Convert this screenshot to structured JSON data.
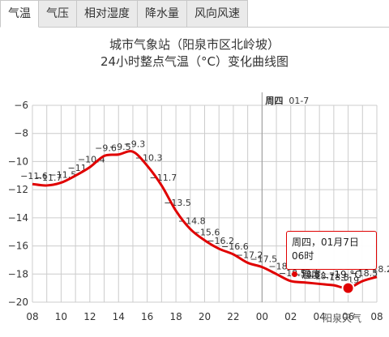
{
  "tabs": [
    {
      "label": "气温",
      "active": true
    },
    {
      "label": "气压",
      "active": false
    },
    {
      "label": "相对湿度",
      "active": false
    },
    {
      "label": "降水量",
      "active": false
    },
    {
      "label": "风向风速",
      "active": false
    }
  ],
  "day_marker": {
    "day": "周四",
    "date": "01-7"
  },
  "tooltip": {
    "title": "周四，01月7日06时",
    "series_label": "温度：",
    "value": "-19 °C"
  },
  "watermark": "阳泉天气",
  "colors": {
    "line": "#e00000",
    "grid": "#cccccc"
  },
  "chart_data": {
    "type": "line",
    "title": "城市气象站（阳泉市区北岭坡）",
    "subtitle": "24小时整点气温（°C）变化曲线图",
    "xlabel": "",
    "ylabel": "",
    "ylim": [
      -20,
      -6
    ],
    "yticks": [
      -6,
      -8,
      -10,
      -12,
      -14,
      -16,
      -18,
      -20
    ],
    "x": [
      "08",
      "09",
      "10",
      "11",
      "12",
      "13",
      "14",
      "15",
      "16",
      "17",
      "18",
      "19",
      "20",
      "21",
      "22",
      "23",
      "00",
      "01",
      "02",
      "03",
      "04",
      "05",
      "06",
      "07",
      "08"
    ],
    "xtick_labels": [
      "08",
      "10",
      "12",
      "14",
      "16",
      "18",
      "20",
      "22",
      "00",
      "02",
      "04",
      "06",
      "08"
    ],
    "values": [
      -11.6,
      -11.7,
      -11.5,
      -11,
      -10.4,
      -9.6,
      -9.5,
      -9.3,
      -10.3,
      -11.7,
      -13.5,
      -14.8,
      -15.6,
      -16.2,
      -16.6,
      -17.2,
      -17.5,
      -18,
      -18.5,
      -18.6,
      -18.7,
      -18.8,
      -19,
      -18.5,
      -18.2
    ],
    "data_labels": [
      "-11.6",
      "-11.7",
      "-11.5",
      "-11",
      "-10.4",
      "-9.6",
      "-9.5",
      "-9.3",
      "-10.3",
      "-11.7",
      "-13.5",
      "-14.8",
      "-15.6",
      "-16.2",
      "-16.6",
      "-17.2",
      "-17.5",
      "-18",
      "-18.5",
      "-18.6",
      "-18.7",
      "-18.8",
      "-19",
      "-18.5",
      "-18.2"
    ],
    "highlight_index": 22,
    "grid": true,
    "legend": "none"
  }
}
